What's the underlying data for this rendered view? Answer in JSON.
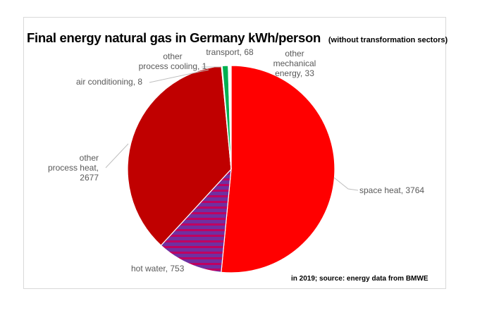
{
  "title": "Final energy natural gas in Germany kWh/person",
  "subtitle": "(without transformation sectors)",
  "source": "in 2019; source: energy data from BMWE",
  "colors": {
    "space_heat": "#ff0000",
    "hot_water": "#7030a0",
    "hot_water_stripe": "#c00060",
    "other_process_heat": "#c00000",
    "air_conditioning": "#a00000",
    "other_process_cooling": "#ffffff",
    "transport": "#00b050",
    "other_mechanical_energy": "#ffffff"
  },
  "chart_data": {
    "type": "pie",
    "title": "Final energy natural gas in Germany kWh/person",
    "subtitle": "(without transformation sectors)",
    "start_angle_deg": 0,
    "direction": "clockwise",
    "slices": [
      {
        "key": "space_heat",
        "name": "space heat",
        "value": 3764,
        "label_lines": [
          "space heat, 3764"
        ],
        "fill": "solid"
      },
      {
        "key": "hot_water",
        "name": "hot water",
        "value": 753,
        "label_lines": [
          "hot water, 753"
        ],
        "fill": "striped"
      },
      {
        "key": "other_process_heat",
        "name": "other process heat",
        "value": 2677,
        "label_lines": [
          "other",
          "process heat,",
          "2677"
        ],
        "fill": "solid"
      },
      {
        "key": "air_conditioning",
        "name": "air conditioning",
        "value": 8,
        "label_lines": [
          "air conditioning, 8"
        ],
        "fill": "solid"
      },
      {
        "key": "other_process_cooling",
        "name": "other process cooling",
        "value": 1,
        "label_lines": [
          "other",
          "process cooling, 1"
        ],
        "fill": "solid"
      },
      {
        "key": "transport",
        "name": "transport",
        "value": 68,
        "label_lines": [
          "transport, 68"
        ],
        "fill": "solid"
      },
      {
        "key": "other_mechanical_energy",
        "name": "other mechanical energy",
        "value": 33,
        "label_lines": [
          "other",
          "mechanical",
          "energy, 33"
        ],
        "fill": "solid"
      }
    ],
    "source": "in 2019; source: energy data from BMWE"
  }
}
